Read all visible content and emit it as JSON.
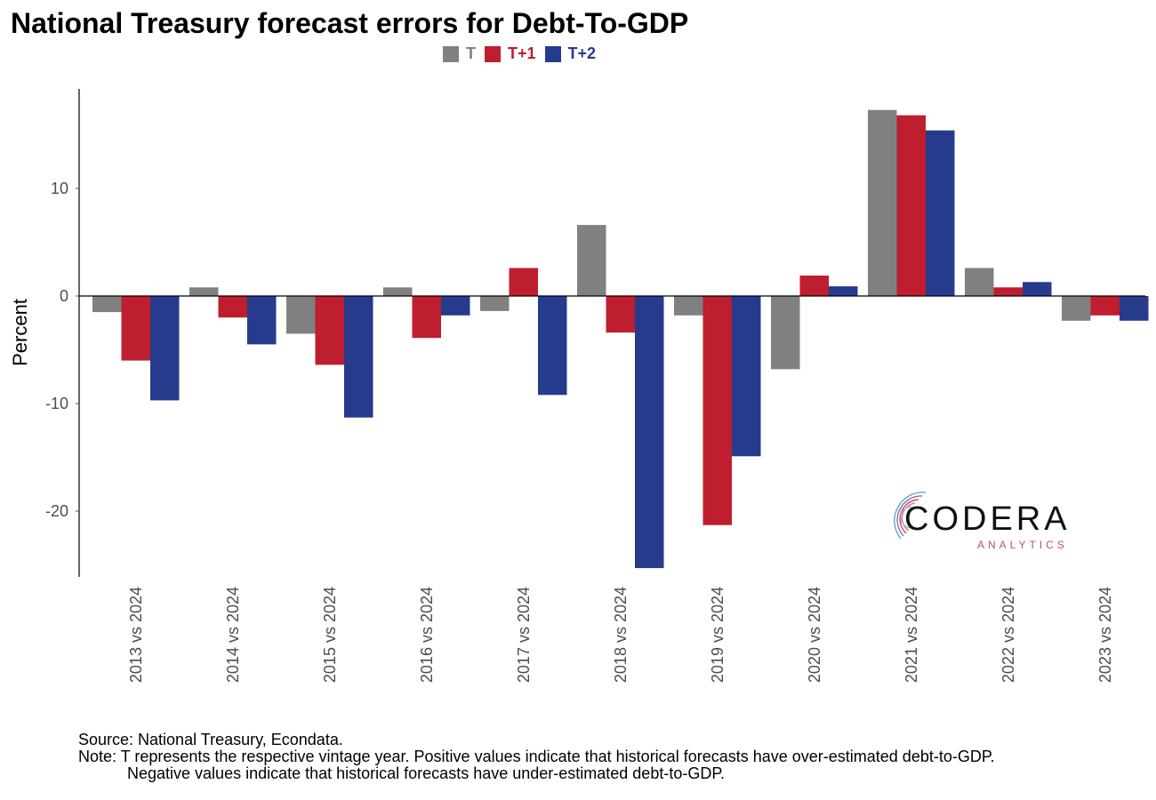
{
  "chart_data": {
    "type": "bar",
    "title": "National Treasury forecast errors for Debt-To-GDP",
    "xlabel": "",
    "ylabel": "Percent",
    "ylim": [
      -25.5,
      19
    ],
    "yticks": [
      -20,
      -10,
      0,
      10
    ],
    "grid": false,
    "legend_position": "top-center",
    "categories": [
      "2013 vs 2024",
      "2014 vs 2024",
      "2015 vs 2024",
      "2016 vs 2024",
      "2017 vs 2024",
      "2018 vs 2024",
      "2019 vs 2024",
      "2020 vs 2024",
      "2021 vs 2024",
      "2022 vs 2024",
      "2023 vs 2024"
    ],
    "series": [
      {
        "name": "T",
        "color": "#808080",
        "values": [
          -1.5,
          0.8,
          -3.5,
          0.8,
          -1.4,
          6.6,
          -1.8,
          -6.8,
          17.3,
          2.6,
          -2.3
        ]
      },
      {
        "name": "T+1",
        "color": "#BE1E2D",
        "values": [
          -6.0,
          -2.0,
          -6.4,
          -3.9,
          2.6,
          -3.4,
          -21.3,
          1.9,
          16.8,
          0.8,
          -1.8
        ]
      },
      {
        "name": "T+2",
        "color": "#263B8C",
        "values": [
          -9.7,
          -4.5,
          -11.3,
          -1.8,
          -9.2,
          -25.3,
          -14.9,
          0.9,
          15.4,
          1.3,
          -2.3
        ]
      }
    ]
  },
  "footer": {
    "source": "Source: National Treasury, Econdata.",
    "note_line1": "Note: T represents the respective vintage year. Positive values indicate that historical forecasts have over-estimated debt-to-GDP.",
    "note_line2": "Negative values indicate that historical forecasts have under-estimated debt-to-GDP."
  },
  "logo": {
    "name": "CODERA",
    "tagline": "ANALYTICS"
  }
}
